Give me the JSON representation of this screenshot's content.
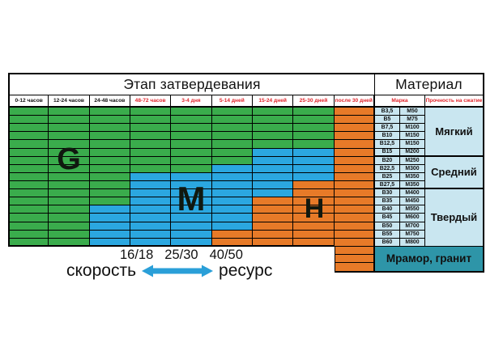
{
  "title": {
    "stage": "Этап затвердевания",
    "material": "Материал"
  },
  "columns": {
    "time": [
      {
        "label": "0-12 часов",
        "red": false
      },
      {
        "label": "12-24 часов",
        "red": false
      },
      {
        "label": "24-48 часов",
        "red": false
      },
      {
        "label": "48-72 часов",
        "red": true
      },
      {
        "label": "3-4 дня",
        "red": true
      },
      {
        "label": "5-14 дней",
        "red": true
      },
      {
        "label": "15-24 дней",
        "red": true
      },
      {
        "label": "25-30 дней",
        "red": true
      },
      {
        "label": "после 30 дней",
        "red": true
      }
    ],
    "marka": "Марка",
    "strength": "Прочность на сжатие"
  },
  "rows": [
    {
      "b": "B3,5",
      "m": "M50",
      "cells": "GGGGGGGGH"
    },
    {
      "b": "B5",
      "m": "M75",
      "cells": "GGGGGGGGH"
    },
    {
      "b": "B7,5",
      "m": "M100",
      "cells": "GGGGGGGGH"
    },
    {
      "b": "B10",
      "m": "M150",
      "cells": "GGGGGGGGH"
    },
    {
      "b": "B12,5",
      "m": "M150",
      "cells": "GGGGGGGGH"
    },
    {
      "b": "B15",
      "m": "M200",
      "cells": "GGGGGGMMH"
    },
    {
      "b": "B20",
      "m": "M250",
      "cells": "GGGGGGMMH"
    },
    {
      "b": "B22,5",
      "m": "M300",
      "cells": "GGGGGMMMH"
    },
    {
      "b": "B25",
      "m": "M350",
      "cells": "GGGMMMMMH"
    },
    {
      "b": "B27,5",
      "m": "M350",
      "cells": "GGGMMMMHH"
    },
    {
      "b": "B30",
      "m": "M400",
      "cells": "GGGMMMMHH"
    },
    {
      "b": "B35",
      "m": "M450",
      "cells": "GGGMMMHHH"
    },
    {
      "b": "B40",
      "m": "M550",
      "cells": "GGMMMMHHH"
    },
    {
      "b": "B45",
      "m": "M600",
      "cells": "GGMMMMHHH"
    },
    {
      "b": "B50",
      "m": "M700",
      "cells": "GGMMMMHHH"
    },
    {
      "b": "B55",
      "m": "M750",
      "cells": "GGMMMHHHH"
    },
    {
      "b": "B60",
      "m": "M800",
      "cells": "GGMMMHHHH"
    }
  ],
  "hardness_groups": [
    {
      "label": "Мягкий",
      "span": 6
    },
    {
      "label": "Средний",
      "span": 4
    },
    {
      "label": "Твердый",
      "span": 7
    }
  ],
  "marble": {
    "label": "Мрамор, гранит"
  },
  "letters": {
    "g": "G",
    "m": "M",
    "h": "H"
  },
  "legend": {
    "numbers": [
      "16/18",
      "25/30",
      "40/50"
    ],
    "left": "скорость",
    "right": "ресурс"
  },
  "colors": {
    "zones": {
      "G": "#3aac4c",
      "M": "#2ba7e0",
      "H": "#e77a28"
    },
    "teal": "#2e95a8",
    "pale_blue": "#c9e6f0",
    "red_text": "#e0252b",
    "arrow_blue": "#2a9fd8"
  },
  "chart_data": {
    "type": "heatmap",
    "title": "Этап затвердевания",
    "right_section_title": "Материал",
    "x_categories": [
      "0-12 часов",
      "12-24 часов",
      "24-48 часов",
      "48-72 часов",
      "3-4 дня",
      "5-14 дней",
      "15-24 дней",
      "25-30 дней",
      "после 30 дней"
    ],
    "y_categories": [
      {
        "marka": "B3,5",
        "strength": "M50",
        "hardness": "Мягкий"
      },
      {
        "marka": "B5",
        "strength": "M75",
        "hardness": "Мягкий"
      },
      {
        "marka": "B7,5",
        "strength": "M100",
        "hardness": "Мягкий"
      },
      {
        "marka": "B10",
        "strength": "M150",
        "hardness": "Мягкий"
      },
      {
        "marka": "B12,5",
        "strength": "M150",
        "hardness": "Мягкий"
      },
      {
        "marka": "B15",
        "strength": "M200",
        "hardness": "Мягкий"
      },
      {
        "marka": "B20",
        "strength": "M250",
        "hardness": "Средний"
      },
      {
        "marka": "B22,5",
        "strength": "M300",
        "hardness": "Средний"
      },
      {
        "marka": "B25",
        "strength": "M350",
        "hardness": "Средний"
      },
      {
        "marka": "B27,5",
        "strength": "M350",
        "hardness": "Средний"
      },
      {
        "marka": "B30",
        "strength": "M400",
        "hardness": "Твердый"
      },
      {
        "marka": "B35",
        "strength": "M450",
        "hardness": "Твердый"
      },
      {
        "marka": "B40",
        "strength": "M550",
        "hardness": "Твердый"
      },
      {
        "marka": "B45",
        "strength": "M600",
        "hardness": "Твердый"
      },
      {
        "marka": "B50",
        "strength": "M700",
        "hardness": "Твердый"
      },
      {
        "marka": "B55",
        "strength": "M750",
        "hardness": "Твердый"
      },
      {
        "marka": "B60",
        "strength": "M800",
        "hardness": "Твердый"
      }
    ],
    "matrix": [
      "GGGGGGGGH",
      "GGGGGGGGH",
      "GGGGGGGGH",
      "GGGGGGGGH",
      "GGGGGGGGH",
      "GGGGGGMMH",
      "GGGGGGMMH",
      "GGGGGMMMH",
      "GGGMMMMMH",
      "GGGMMMMHH",
      "GGGMMMMHH",
      "GGGMMMHHH",
      "GGMMMMHHH",
      "GGMMMMHHH",
      "GGMMMMHHH",
      "GGMMMHHHH",
      "GGMMMHHHH"
    ],
    "zone_labels": [
      "G",
      "M",
      "H"
    ],
    "zone_colors": {
      "G": "green",
      "M": "blue",
      "H": "orange"
    },
    "extra_row": "Мрамор, гранит",
    "annotations": {
      "numbers": [
        "16/18",
        "25/30",
        "40/50"
      ],
      "axis_left": "скорость",
      "axis_right": "ресурс"
    },
    "legend_position": "bottom",
    "grid": true
  }
}
